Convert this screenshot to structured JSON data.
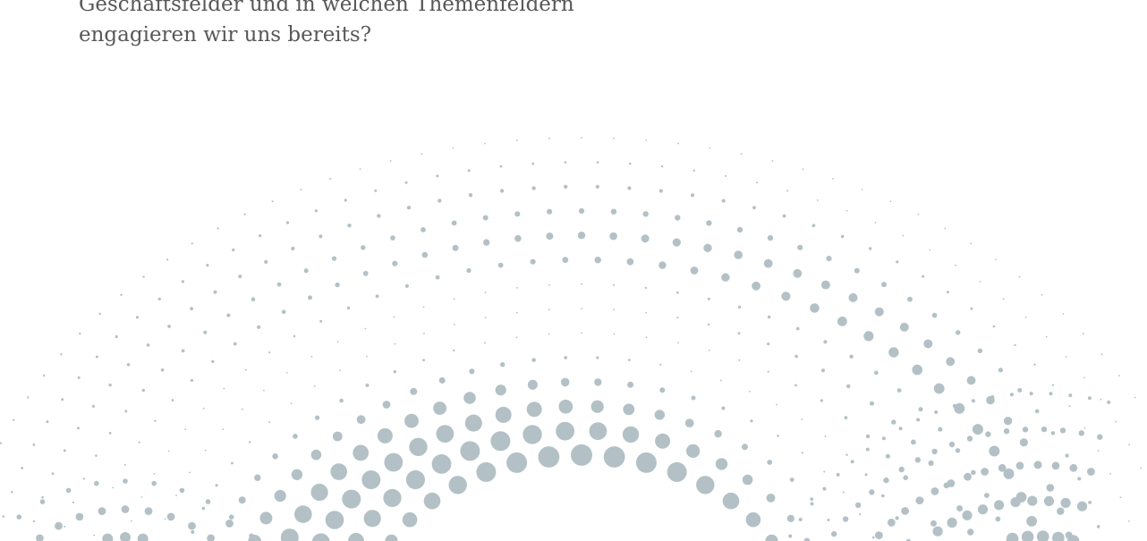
{
  "intro": {
    "line1": "Geschäftsfelder und in welchen Themenfeldern",
    "line2": "engagieren wir uns bereits?"
  },
  "decoration": {
    "dot_color": "#b3c1c6",
    "description_icon": "dot-wave-pattern-icon"
  }
}
